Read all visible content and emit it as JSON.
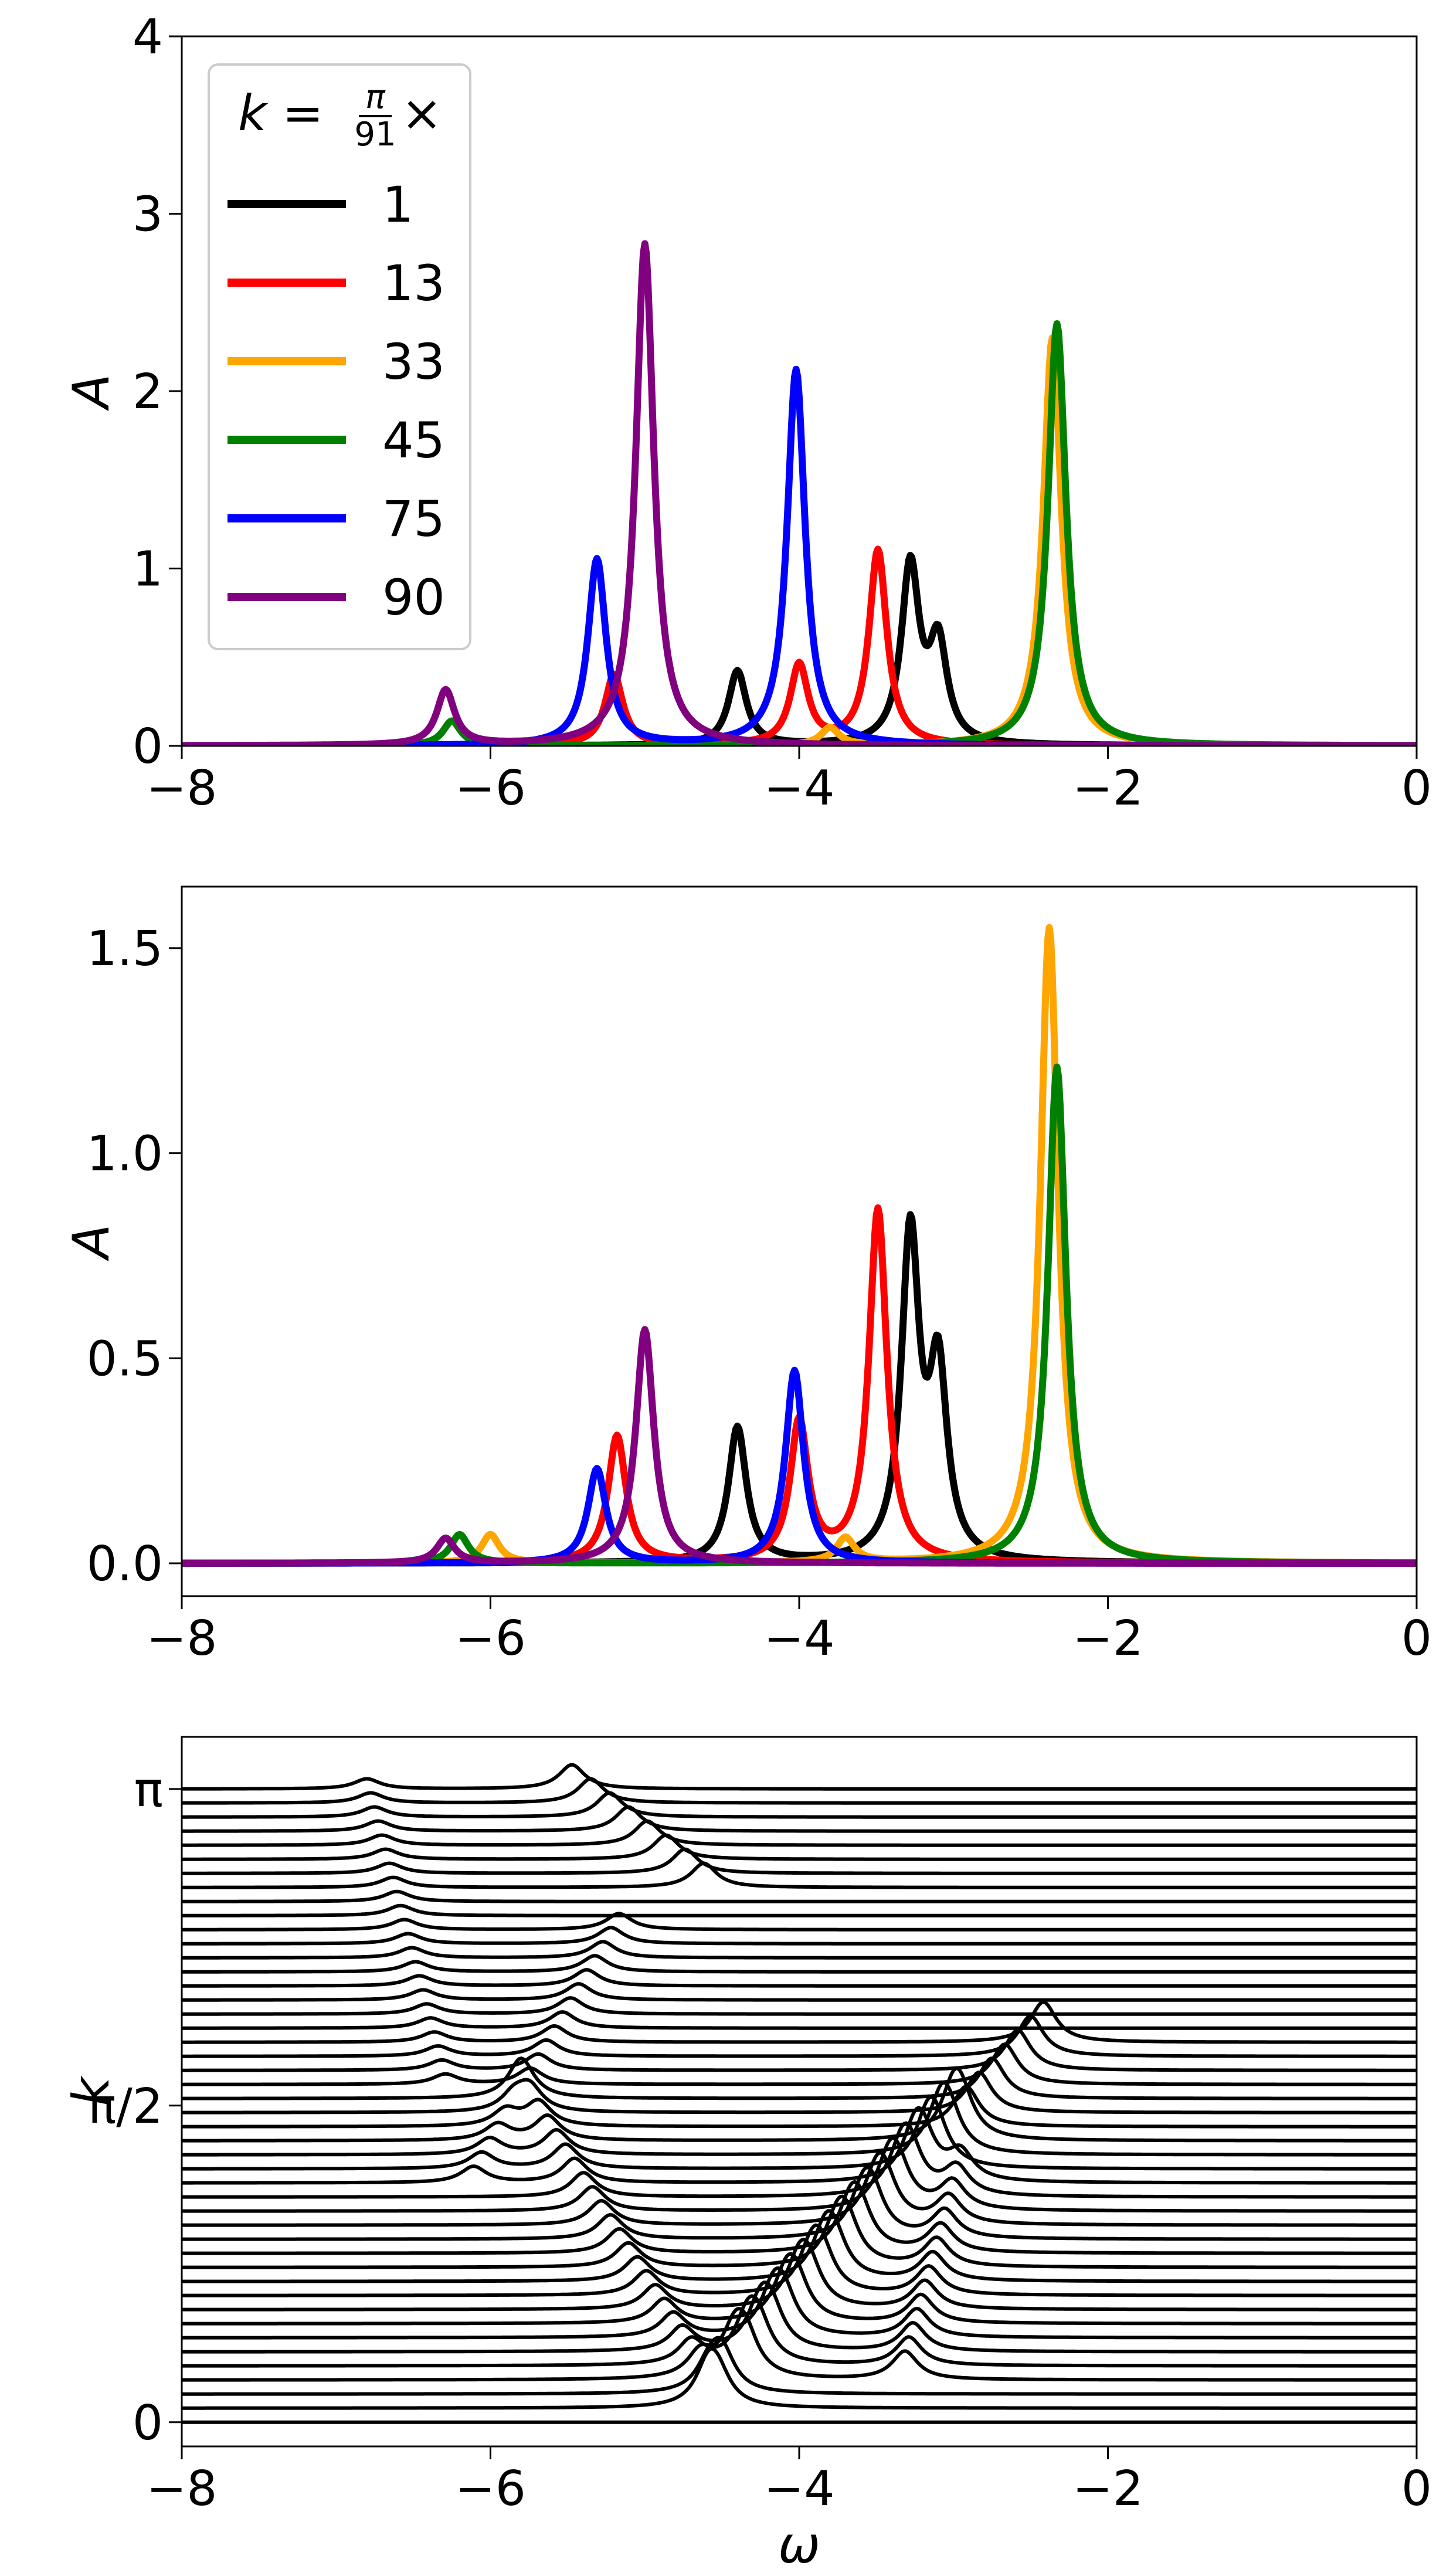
{
  "chart_data": [
    {
      "type": "line",
      "panel": "top",
      "xlabel": "",
      "ylabel": "A",
      "xlim": [
        -8,
        0
      ],
      "ylim": [
        0,
        4
      ],
      "xticks": [
        -8,
        -6,
        -4,
        -2,
        0
      ],
      "xtick_labels": [
        "−8",
        "−6",
        "−4",
        "−2",
        "0"
      ],
      "yticks": [
        0,
        1,
        2,
        3,
        4
      ],
      "ytick_labels": [
        "0",
        "1",
        "2",
        "3",
        "4"
      ],
      "grid": false,
      "legend": {
        "placement": "top-left",
        "title_parts": {
          "lhs": "k",
          "eq": " = ",
          "num": "π",
          "den": "91",
          "suffix": " ×"
        }
      },
      "series": [
        {
          "name": "1",
          "color": "#000000",
          "peaks": [
            {
              "x": -3.28,
              "h": 1.0
            },
            {
              "x": -3.1,
              "h": 0.55
            },
            {
              "x": -4.4,
              "h": 0.42
            }
          ]
        },
        {
          "name": "13",
          "color": "#ff0000",
          "peaks": [
            {
              "x": -3.49,
              "h": 1.1
            },
            {
              "x": -4.0,
              "h": 0.45
            },
            {
              "x": -5.2,
              "h": 0.4
            }
          ]
        },
        {
          "name": "33",
          "color": "#ffa500",
          "peaks": [
            {
              "x": -2.36,
              "h": 2.3
            },
            {
              "x": -3.8,
              "h": 0.1
            }
          ]
        },
        {
          "name": "45",
          "color": "#008000",
          "peaks": [
            {
              "x": -2.33,
              "h": 2.38
            },
            {
              "x": -6.25,
              "h": 0.14
            }
          ]
        },
        {
          "name": "75",
          "color": "#0000ff",
          "peaks": [
            {
              "x": -4.02,
              "h": 2.12
            },
            {
              "x": -5.31,
              "h": 1.05
            }
          ]
        },
        {
          "name": "90",
          "color": "#800080",
          "peaks": [
            {
              "x": -5.0,
              "h": 2.83
            },
            {
              "x": -6.29,
              "h": 0.31
            }
          ]
        }
      ]
    },
    {
      "type": "line",
      "panel": "middle",
      "xlabel": "",
      "ylabel": "A",
      "xlim": [
        -8,
        0
      ],
      "ylim": [
        -0.08,
        1.65
      ],
      "xticks": [
        -8,
        -6,
        -4,
        -2,
        0
      ],
      "xtick_labels": [
        "−8",
        "−6",
        "−4",
        "−2",
        "0"
      ],
      "yticks": [
        0.0,
        0.5,
        1.0,
        1.5
      ],
      "ytick_labels": [
        "0.0",
        "0.5",
        "1.0",
        "1.5"
      ],
      "grid": false,
      "series": [
        {
          "name": "1",
          "color": "#000000",
          "peaks": [
            {
              "x": -3.28,
              "h": 0.79
            },
            {
              "x": -3.1,
              "h": 0.45
            },
            {
              "x": -4.4,
              "h": 0.33
            }
          ]
        },
        {
          "name": "13",
          "color": "#ff0000",
          "peaks": [
            {
              "x": -3.49,
              "h": 0.86
            },
            {
              "x": -4.0,
              "h": 0.34
            },
            {
              "x": -5.18,
              "h": 0.31
            }
          ]
        },
        {
          "name": "33",
          "color": "#ffa500",
          "peaks": [
            {
              "x": -2.38,
              "h": 1.55
            },
            {
              "x": -3.7,
              "h": 0.06
            },
            {
              "x": -6.0,
              "h": 0.07
            }
          ]
        },
        {
          "name": "45",
          "color": "#008000",
          "peaks": [
            {
              "x": -2.33,
              "h": 1.21
            },
            {
              "x": -6.2,
              "h": 0.07
            }
          ]
        },
        {
          "name": "75",
          "color": "#0000ff",
          "peaks": [
            {
              "x": -4.03,
              "h": 0.47
            },
            {
              "x": -5.31,
              "h": 0.23
            }
          ]
        },
        {
          "name": "90",
          "color": "#800080",
          "peaks": [
            {
              "x": -5.0,
              "h": 0.57
            },
            {
              "x": -6.29,
              "h": 0.06
            }
          ]
        }
      ]
    },
    {
      "type": "line",
      "panel": "bottom",
      "description_style": "waterfall",
      "xlabel": "ω",
      "ylabel": "k",
      "xlim": [
        -8,
        0
      ],
      "ylim": [
        -0.12,
        3.4
      ],
      "xticks": [
        -8,
        -6,
        -4,
        -2,
        0
      ],
      "xtick_labels": [
        "−8",
        "−6",
        "−4",
        "−2",
        "0"
      ],
      "yticks": [
        0,
        1.5708,
        3.1416
      ],
      "ytick_labels": [
        "0",
        "π/2",
        "π"
      ],
      "grid": false,
      "color": "#000000",
      "n_curves": 46,
      "k_max": 3.1416,
      "ridges": [
        {
          "from": [
            -4.55,
            0.1
          ],
          "to": [
            -2.4,
            1.9
          ],
          "h": 0.2
        },
        {
          "from": [
            -4.55,
            0.1
          ],
          "to": [
            -5.8,
            1.6
          ],
          "h": 0.12
        },
        {
          "from": [
            -4.3,
            0.25
          ],
          "to": [
            -2.95,
            1.4
          ],
          "h": 0.18
        },
        {
          "from": [
            -3.3,
            0.25
          ],
          "to": [
            -2.95,
            1.2
          ],
          "h": 0.14
        },
        {
          "from": [
            -5.2,
            2.4
          ],
          "to": [
            -6.1,
            1.2
          ],
          "h": 0.08
        },
        {
          "from": [
            -4.7,
            2.7
          ],
          "to": [
            -5.4,
            3.1
          ],
          "h": 0.12
        },
        {
          "from": [
            -6.3,
            1.7
          ],
          "to": [
            -6.8,
            3.14
          ],
          "h": 0.05
        }
      ]
    }
  ]
}
